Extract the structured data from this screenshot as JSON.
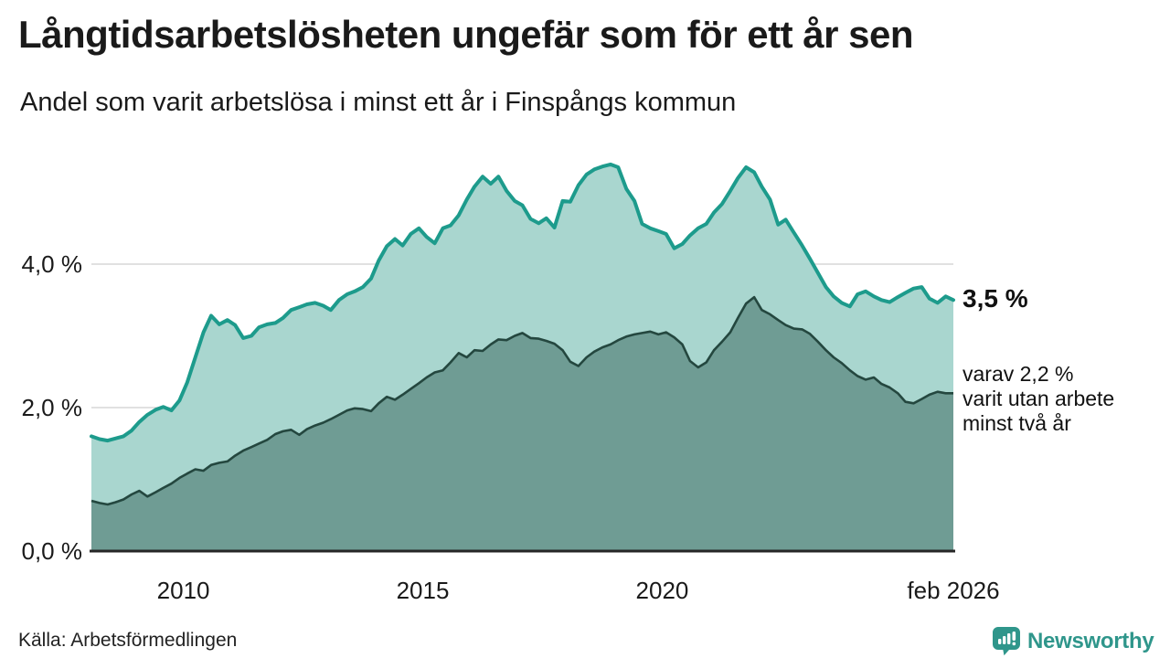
{
  "chart_data": {
    "type": "area",
    "title": "Långtidsarbetslösheten ungefär som för ett år sen",
    "subtitle": "Andel som varit arbetslösa i minst ett år i Finspångs kommun",
    "source": "Källa: Arbetsförmedlingen",
    "x_range": [
      2008.08,
      2026.08
    ],
    "ylim": [
      0,
      5.6
    ],
    "grid": "horizontal",
    "legend": "none",
    "x_ticks": [
      {
        "label": "2010",
        "year": 2010
      },
      {
        "label": "2015",
        "year": 2015
      },
      {
        "label": "2020",
        "year": 2020
      },
      {
        "label": "feb 2026",
        "year": 2026.08
      }
    ],
    "y_ticks": [
      {
        "label": "0,0 %",
        "value": 0
      },
      {
        "label": "2,0 %",
        "value": 2
      },
      {
        "label": "4,0 %",
        "value": 4
      }
    ],
    "x": [
      2008.08,
      2008.25,
      2008.42,
      2008.58,
      2008.75,
      2008.92,
      2009.08,
      2009.25,
      2009.42,
      2009.58,
      2009.75,
      2009.92,
      2010.08,
      2010.25,
      2010.42,
      2010.58,
      2010.75,
      2010.92,
      2011.08,
      2011.25,
      2011.42,
      2011.58,
      2011.75,
      2011.92,
      2012.08,
      2012.25,
      2012.42,
      2012.58,
      2012.75,
      2012.92,
      2013.08,
      2013.25,
      2013.42,
      2013.58,
      2013.75,
      2013.92,
      2014.08,
      2014.25,
      2014.42,
      2014.58,
      2014.75,
      2014.92,
      2015.08,
      2015.25,
      2015.42,
      2015.58,
      2015.75,
      2015.92,
      2016.08,
      2016.25,
      2016.42,
      2016.58,
      2016.75,
      2016.92,
      2017.08,
      2017.25,
      2017.42,
      2017.58,
      2017.75,
      2017.92,
      2018.08,
      2018.25,
      2018.42,
      2018.58,
      2018.75,
      2018.92,
      2019.08,
      2019.25,
      2019.42,
      2019.58,
      2019.75,
      2019.92,
      2020.08,
      2020.25,
      2020.42,
      2020.58,
      2020.75,
      2020.92,
      2021.08,
      2021.25,
      2021.42,
      2021.58,
      2021.75,
      2021.92,
      2022.08,
      2022.25,
      2022.42,
      2022.58,
      2022.75,
      2022.92,
      2023.08,
      2023.25,
      2023.42,
      2023.58,
      2023.75,
      2023.92,
      2024.08,
      2024.25,
      2024.42,
      2024.58,
      2024.75,
      2024.92,
      2025.08,
      2025.25,
      2025.42,
      2025.58,
      2025.75,
      2025.92,
      2026.08
    ],
    "series": [
      {
        "name": "arbetslösa minst ett år",
        "color": "#1d9b8c",
        "fill": "#a9d6cf",
        "values": [
          1.6,
          1.56,
          1.54,
          1.57,
          1.6,
          1.68,
          1.8,
          1.9,
          1.97,
          2.01,
          1.96,
          2.1,
          2.35,
          2.7,
          3.05,
          3.28,
          3.16,
          3.22,
          3.15,
          2.97,
          3.0,
          3.12,
          3.16,
          3.18,
          3.25,
          3.36,
          3.4,
          3.44,
          3.46,
          3.42,
          3.36,
          3.5,
          3.58,
          3.62,
          3.68,
          3.8,
          4.05,
          4.25,
          4.35,
          4.26,
          4.42,
          4.5,
          4.38,
          4.29,
          4.5,
          4.54,
          4.68,
          4.9,
          5.08,
          5.22,
          5.12,
          5.22,
          5.02,
          4.88,
          4.82,
          4.63,
          4.57,
          4.64,
          4.51,
          4.88,
          4.87,
          5.1,
          5.25,
          5.32,
          5.36,
          5.39,
          5.35,
          5.05,
          4.88,
          4.56,
          4.5,
          4.46,
          4.42,
          4.22,
          4.28,
          4.4,
          4.5,
          4.56,
          4.72,
          4.84,
          5.02,
          5.2,
          5.35,
          5.28,
          5.08,
          4.9,
          4.55,
          4.62,
          4.44,
          4.26,
          4.08,
          3.88,
          3.68,
          3.55,
          3.46,
          3.41,
          3.58,
          3.62,
          3.55,
          3.5,
          3.47,
          3.54,
          3.6,
          3.66,
          3.68,
          3.52,
          3.46,
          3.55,
          3.5
        ]
      },
      {
        "name": "arbetslösa minst två år",
        "color": "#24473f",
        "fill": "#6f9c94",
        "values": [
          0.7,
          0.67,
          0.65,
          0.68,
          0.72,
          0.79,
          0.84,
          0.76,
          0.82,
          0.88,
          0.94,
          1.02,
          1.08,
          1.14,
          1.12,
          1.2,
          1.23,
          1.25,
          1.33,
          1.4,
          1.45,
          1.5,
          1.55,
          1.63,
          1.67,
          1.69,
          1.62,
          1.7,
          1.75,
          1.79,
          1.84,
          1.9,
          1.96,
          1.99,
          1.98,
          1.95,
          2.06,
          2.15,
          2.11,
          2.18,
          2.26,
          2.34,
          2.42,
          2.49,
          2.52,
          2.63,
          2.76,
          2.7,
          2.8,
          2.79,
          2.88,
          2.95,
          2.94,
          3.0,
          3.04,
          2.97,
          2.96,
          2.93,
          2.89,
          2.8,
          2.64,
          2.58,
          2.7,
          2.78,
          2.84,
          2.88,
          2.94,
          2.99,
          3.02,
          3.04,
          3.06,
          3.02,
          3.05,
          2.98,
          2.88,
          2.65,
          2.56,
          2.63,
          2.8,
          2.92,
          3.05,
          3.25,
          3.45,
          3.54,
          3.36,
          3.3,
          3.22,
          3.15,
          3.1,
          3.09,
          3.03,
          2.92,
          2.8,
          2.7,
          2.62,
          2.52,
          2.44,
          2.39,
          2.42,
          2.33,
          2.28,
          2.2,
          2.08,
          2.06,
          2.12,
          2.18,
          2.22,
          2.2,
          2.2
        ]
      }
    ],
    "annotations": [
      {
        "text": "3,5 %",
        "value": 3.5,
        "bold": true
      },
      {
        "value": 2.2,
        "lines": [
          "varav 2,2 %",
          "varit utan arbete",
          "minst två år"
        ]
      }
    ],
    "colors": {
      "line_total": "#1d9b8c",
      "fill_total": "#a9d6cf",
      "line_two_year": "#24473f",
      "fill_two_year": "#6f9c94",
      "gridline": "#d7d7d7",
      "axis": "#262626",
      "text": "#1a1a1a",
      "brand": "#2f968b"
    }
  },
  "footer": {
    "brand": "Newsworthy"
  }
}
